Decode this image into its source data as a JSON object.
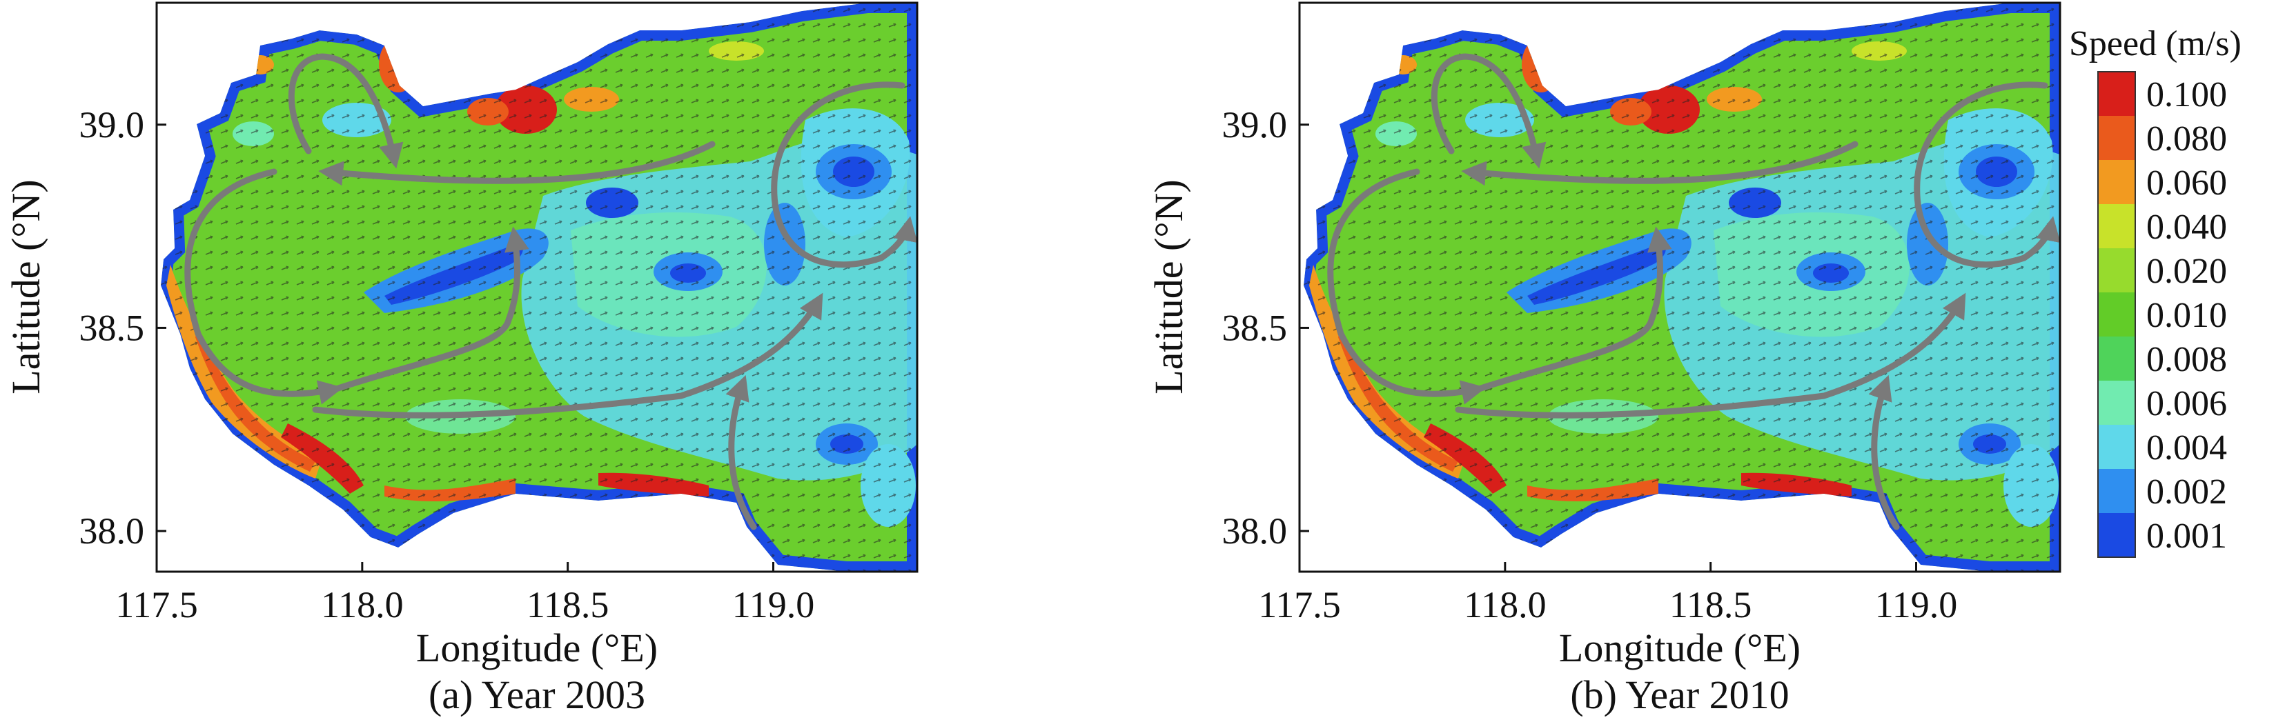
{
  "legend": {
    "title": "Speed (m/s)",
    "levels": [
      {
        "label": "0.100",
        "color": "#d81f1a"
      },
      {
        "label": "0.080",
        "color": "#ea5a1c"
      },
      {
        "label": "0.060",
        "color": "#f29a20"
      },
      {
        "label": "0.040",
        "color": "#c8e22a"
      },
      {
        "label": "0.020",
        "color": "#97db2d"
      },
      {
        "label": "0.010",
        "color": "#62cc28"
      },
      {
        "label": "0.008",
        "color": "#4fd35a"
      },
      {
        "label": "0.006",
        "color": "#71ebb0"
      },
      {
        "label": "0.004",
        "color": "#5fd8ea"
      },
      {
        "label": "0.002",
        "color": "#2f8ff0"
      },
      {
        "label": "0.001",
        "color": "#1a4ae3"
      }
    ]
  },
  "axes": {
    "xlabel": "Longitude (°E)",
    "ylabel": "Latitude (°N)",
    "xticks": [
      "117.5",
      "118.0",
      "118.5",
      "119.0"
    ],
    "yticks": [
      "39.0",
      "38.5",
      "38.0"
    ],
    "xticks_values": [
      117.5,
      118.0,
      118.5,
      119.0
    ],
    "yticks_values": [
      39.0,
      38.5,
      38.0
    ],
    "xlim": [
      117.5,
      119.35
    ],
    "ylim": [
      37.9,
      39.3
    ]
  },
  "panels": [
    {
      "caption": "(a) Year 2003"
    },
    {
      "caption": "(b) Year 2010"
    }
  ],
  "colors": {
    "land": "#ffffff",
    "circulation_arrows": "#7a7a7a",
    "vectors": "#1a1a1a"
  }
}
